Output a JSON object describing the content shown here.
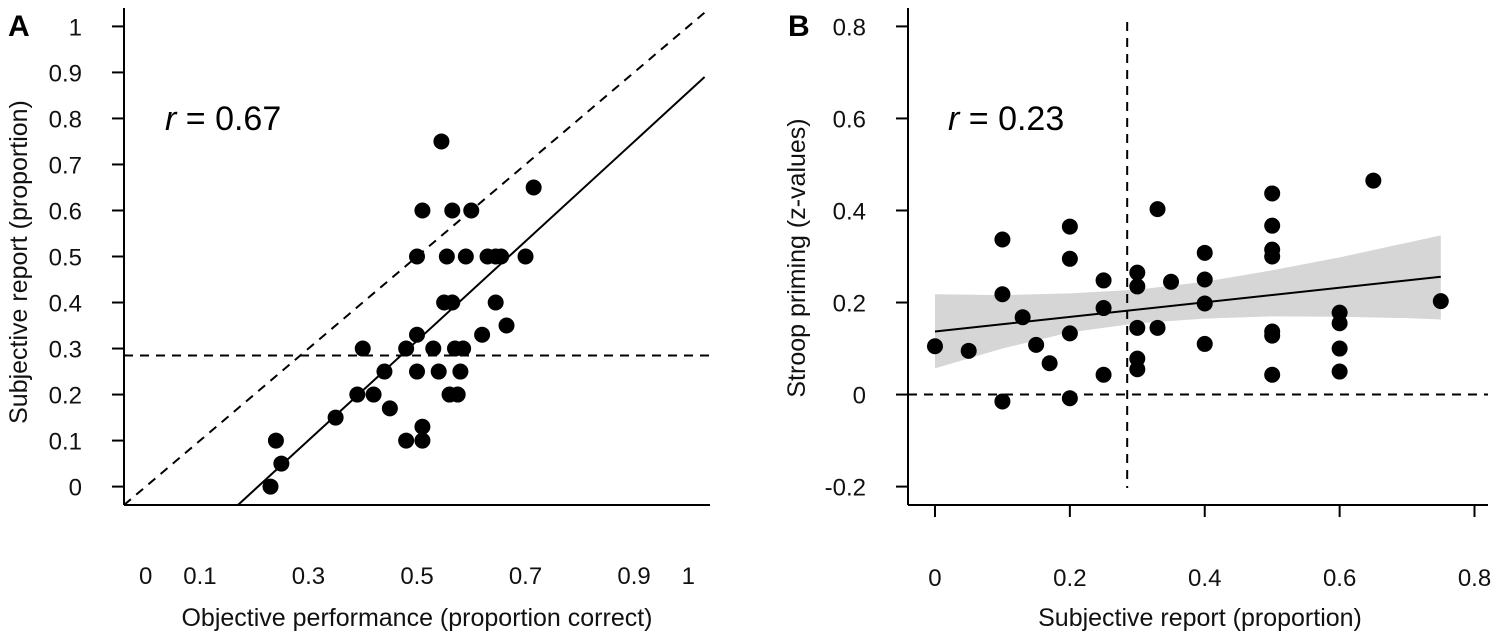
{
  "chart_data": [
    {
      "type": "scatter",
      "panel": "A",
      "xlabel": "Objective performance (proportion correct)",
      "ylabel": "Subjective report (proportion)",
      "xlim": [
        -0.04,
        1.04
      ],
      "ylim": [
        -0.04,
        1.04
      ],
      "xticks": [
        0,
        0.1,
        0.3,
        0.5,
        0.7,
        0.9,
        1
      ],
      "xtick_labels": [
        "0",
        "0.1",
        "0.3",
        "0.5",
        "0.7",
        "0.9",
        "1"
      ],
      "yticks": [
        0,
        0.1,
        0.2,
        0.3,
        0.4,
        0.5,
        0.6,
        0.7,
        0.8,
        0.9,
        1
      ],
      "ytick_labels": [
        "0",
        "0.1",
        "0.2",
        "0.3",
        "0.4",
        "0.5",
        "0.6",
        "0.7",
        "0.8",
        "0.9",
        "1"
      ],
      "annotation": {
        "r_symbol": "r",
        "r_text": " = 0.67"
      },
      "points": [
        {
          "x": 0.23,
          "y": 0.0
        },
        {
          "x": 0.24,
          "y": 0.1
        },
        {
          "x": 0.25,
          "y": 0.05
        },
        {
          "x": 0.35,
          "y": 0.15
        },
        {
          "x": 0.39,
          "y": 0.2
        },
        {
          "x": 0.4,
          "y": 0.3
        },
        {
          "x": 0.42,
          "y": 0.2
        },
        {
          "x": 0.44,
          "y": 0.25
        },
        {
          "x": 0.45,
          "y": 0.17
        },
        {
          "x": 0.48,
          "y": 0.1
        },
        {
          "x": 0.48,
          "y": 0.3
        },
        {
          "x": 0.5,
          "y": 0.25
        },
        {
          "x": 0.5,
          "y": 0.33
        },
        {
          "x": 0.5,
          "y": 0.5
        },
        {
          "x": 0.51,
          "y": 0.13
        },
        {
          "x": 0.51,
          "y": 0.1
        },
        {
          "x": 0.51,
          "y": 0.6
        },
        {
          "x": 0.53,
          "y": 0.3
        },
        {
          "x": 0.54,
          "y": 0.25
        },
        {
          "x": 0.545,
          "y": 0.75
        },
        {
          "x": 0.55,
          "y": 0.4
        },
        {
          "x": 0.555,
          "y": 0.5
        },
        {
          "x": 0.56,
          "y": 0.2
        },
        {
          "x": 0.565,
          "y": 0.6
        },
        {
          "x": 0.565,
          "y": 0.4
        },
        {
          "x": 0.57,
          "y": 0.3
        },
        {
          "x": 0.575,
          "y": 0.2
        },
        {
          "x": 0.58,
          "y": 0.25
        },
        {
          "x": 0.585,
          "y": 0.3
        },
        {
          "x": 0.59,
          "y": 0.5
        },
        {
          "x": 0.6,
          "y": 0.6
        },
        {
          "x": 0.62,
          "y": 0.33
        },
        {
          "x": 0.63,
          "y": 0.5
        },
        {
          "x": 0.645,
          "y": 0.5
        },
        {
          "x": 0.645,
          "y": 0.4
        },
        {
          "x": 0.655,
          "y": 0.5
        },
        {
          "x": 0.665,
          "y": 0.35
        },
        {
          "x": 0.7,
          "y": 0.5
        },
        {
          "x": 0.715,
          "y": 0.65
        }
      ],
      "regression_line": {
        "x": [
          0.17,
          1.03
        ],
        "y": [
          -0.04,
          0.89
        ]
      },
      "identity_line": {
        "x": [
          -0.04,
          1.03
        ],
        "y": [
          -0.04,
          1.03
        ]
      },
      "hline": 0.285
    },
    {
      "type": "scatter",
      "panel": "B",
      "xlabel": "Subjective report (proportion)",
      "ylabel": "Stroop priming (z-values)",
      "xlim": [
        -0.04,
        0.82
      ],
      "ylim": [
        -0.24,
        0.84
      ],
      "xticks": [
        0,
        0.2,
        0.4,
        0.6,
        0.8
      ],
      "xtick_labels": [
        "0",
        "0.2",
        "0.4",
        "0.6",
        "0.8"
      ],
      "yticks": [
        -0.2,
        0,
        0.2,
        0.4,
        0.6,
        0.8
      ],
      "ytick_labels": [
        "-0.2",
        "0",
        "0.2",
        "0.4",
        "0.6",
        "0.8"
      ],
      "annotation": {
        "r_symbol": "r",
        "r_text": " = 0.23"
      },
      "points": [
        {
          "x": 0.0,
          "y": 0.105
        },
        {
          "x": 0.05,
          "y": 0.095
        },
        {
          "x": 0.1,
          "y": 0.337
        },
        {
          "x": 0.1,
          "y": 0.218
        },
        {
          "x": 0.1,
          "y": -0.015
        },
        {
          "x": 0.13,
          "y": 0.168
        },
        {
          "x": 0.15,
          "y": 0.108
        },
        {
          "x": 0.17,
          "y": 0.068
        },
        {
          "x": 0.2,
          "y": 0.365
        },
        {
          "x": 0.2,
          "y": 0.295
        },
        {
          "x": 0.2,
          "y": 0.133
        },
        {
          "x": 0.2,
          "y": -0.008
        },
        {
          "x": 0.25,
          "y": 0.248
        },
        {
          "x": 0.25,
          "y": 0.188
        },
        {
          "x": 0.25,
          "y": 0.043
        },
        {
          "x": 0.3,
          "y": 0.265
        },
        {
          "x": 0.3,
          "y": 0.235
        },
        {
          "x": 0.3,
          "y": 0.145
        },
        {
          "x": 0.3,
          "y": 0.078
        },
        {
          "x": 0.3,
          "y": 0.055
        },
        {
          "x": 0.33,
          "y": 0.403
        },
        {
          "x": 0.33,
          "y": 0.145
        },
        {
          "x": 0.35,
          "y": 0.245
        },
        {
          "x": 0.4,
          "y": 0.308
        },
        {
          "x": 0.4,
          "y": 0.25
        },
        {
          "x": 0.4,
          "y": 0.198
        },
        {
          "x": 0.4,
          "y": 0.11
        },
        {
          "x": 0.5,
          "y": 0.437
        },
        {
          "x": 0.5,
          "y": 0.367
        },
        {
          "x": 0.5,
          "y": 0.315
        },
        {
          "x": 0.5,
          "y": 0.3
        },
        {
          "x": 0.5,
          "y": 0.137
        },
        {
          "x": 0.5,
          "y": 0.128
        },
        {
          "x": 0.5,
          "y": 0.043
        },
        {
          "x": 0.6,
          "y": 0.178
        },
        {
          "x": 0.6,
          "y": 0.155
        },
        {
          "x": 0.6,
          "y": 0.1
        },
        {
          "x": 0.6,
          "y": 0.05
        },
        {
          "x": 0.65,
          "y": 0.465
        },
        {
          "x": 0.75,
          "y": 0.203
        }
      ],
      "regression_line": {
        "x": [
          0.0,
          0.75
        ],
        "y": [
          0.137,
          0.256
        ]
      },
      "confidence_band": {
        "x": [
          0.0,
          0.1,
          0.2,
          0.3,
          0.4,
          0.5,
          0.6,
          0.7,
          0.75
        ],
        "upper": [
          0.218,
          0.216,
          0.22,
          0.228,
          0.245,
          0.27,
          0.298,
          0.33,
          0.346
        ],
        "lower": [
          0.057,
          0.1,
          0.135,
          0.155,
          0.165,
          0.17,
          0.169,
          0.166,
          0.163
        ]
      },
      "hline": 0,
      "vline": 0.285,
      "band_color": "#d6d6d6"
    }
  ]
}
